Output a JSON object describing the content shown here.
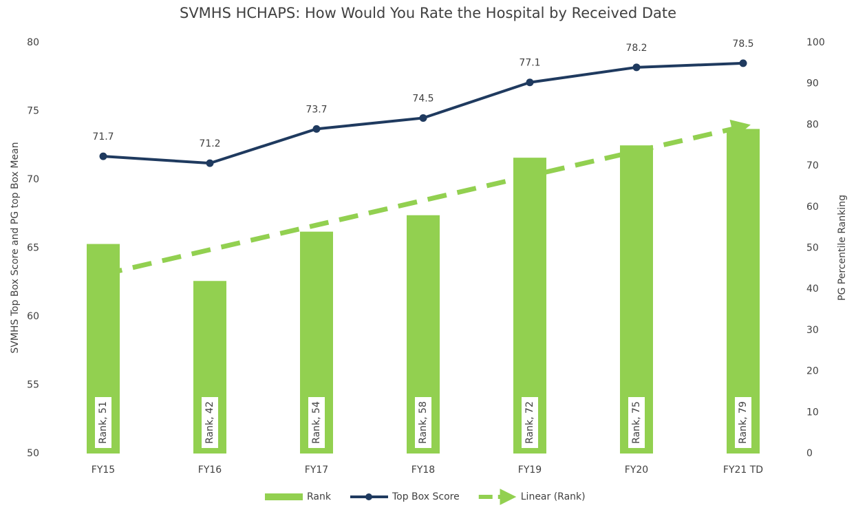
{
  "chart_data": {
    "type": "combo",
    "title": "SVMHS HCHAPS: How Would You Rate the Hospital by Received Date",
    "y_label": "SVMHS Top Box Score and PG top Box Mean",
    "y2_label": "PG Percentile Ranking",
    "categories": [
      "FY15",
      "FY16",
      "FY17",
      "FY18",
      "FY19",
      "FY20",
      "FY21 TD"
    ],
    "ylim": [
      50,
      80
    ],
    "yticks": [
      50,
      55,
      60,
      65,
      70,
      75,
      80
    ],
    "y2lim": [
      0,
      100
    ],
    "y2ticks": [
      0,
      10,
      20,
      30,
      40,
      50,
      60,
      70,
      80,
      90,
      100
    ],
    "grid": false,
    "legend": "bottom",
    "series": [
      {
        "name": "Rank",
        "type": "bar",
        "axis": "y2",
        "color": "#92d050",
        "values": [
          51,
          42,
          54,
          58,
          72,
          75,
          79
        ],
        "value_labels": [
          "Rank, 51",
          "Rank, 42",
          "Rank, 54",
          "Rank, 58",
          "Rank, 72",
          "Rank, 75",
          "Rank, 79"
        ]
      },
      {
        "name": "Top Box Score",
        "type": "line",
        "color": "#1f3a5f",
        "values": [
          71.7,
          71.2,
          73.7,
          74.5,
          77.1,
          78.2,
          78.5
        ]
      },
      {
        "name": "Linear (Rank)",
        "type": "trend",
        "axis": "y2",
        "color": "#92d050",
        "style": "dashed",
        "values": [
          43.6,
          49.6,
          55.6,
          61.6,
          67.6,
          73.6,
          79.6
        ]
      }
    ]
  }
}
